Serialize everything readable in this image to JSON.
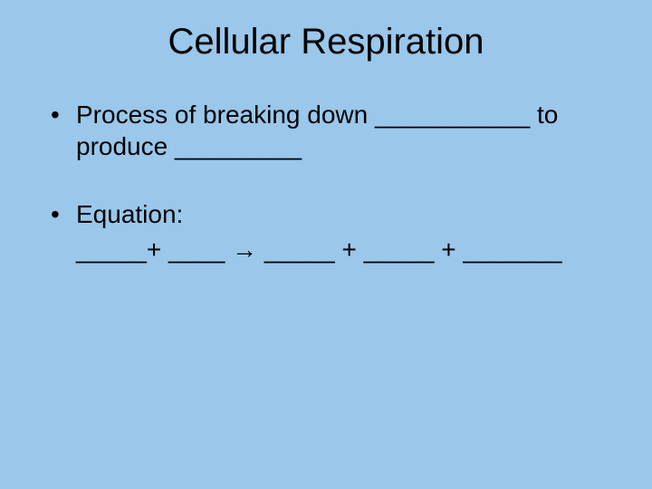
{
  "slide": {
    "title": "Cellular Respiration",
    "background_color": "#9ac7ea",
    "text_color": "#000000",
    "title_fontsize": 40,
    "body_fontsize": 28,
    "font_family": "Arial",
    "bullets": [
      {
        "text": "Process of breaking down ___________ to produce _________"
      },
      {
        "text": "Equation:"
      }
    ],
    "equation_text": "_____+ ____ → _____ + _____ + _______"
  }
}
